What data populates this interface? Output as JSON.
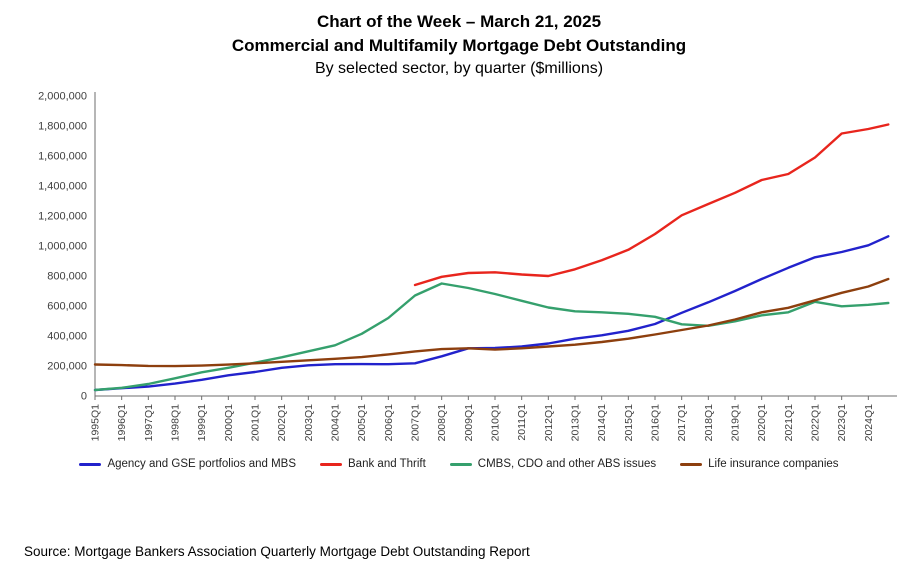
{
  "header": {
    "line1": "Chart of the Week – March 21, 2025",
    "line2": "Commercial and Multifamily Mortgage Debt Outstanding",
    "line3": "By selected sector, by quarter ($millions)"
  },
  "source": "Source: Mortgage Bankers Association Quarterly Mortgage Debt Outstanding Report",
  "chart_data": {
    "type": "line",
    "title": "Chart of the Week – March 21, 2025",
    "subtitle": "Commercial and Multifamily Mortgage Debt Outstanding",
    "caption": "By selected sector, by quarter ($millions)",
    "grid": false,
    "legend_position": "bottom",
    "x_range": [
      1995,
      2025
    ],
    "ylim": [
      0,
      2000000
    ],
    "y_tick_values": [
      0,
      200000,
      400000,
      600000,
      800000,
      1000000,
      1200000,
      1400000,
      1600000,
      1800000,
      2000000
    ],
    "y_tick_labels": [
      "0",
      "200,000",
      "400,000",
      "600,000",
      "800,000",
      "1,000,000",
      "1,200,000",
      "1,400,000",
      "1,600,000",
      "1,800,000",
      "2,000,000"
    ],
    "x_tick_labels": [
      "1995Q1",
      "1996Q1",
      "1997Q1",
      "1998Q1",
      "1999Q1",
      "2000Q1",
      "2001Q1",
      "2002Q1",
      "2003Q1",
      "2004Q1",
      "2005Q1",
      "2006Q1",
      "2007Q1",
      "2008Q1",
      "2009Q1",
      "2010Q1",
      "2011Q1",
      "2012Q1",
      "2013Q1",
      "2014Q1",
      "2015Q1",
      "2016Q1",
      "2017Q1",
      "2018Q1",
      "2019Q1",
      "2020Q1",
      "2021Q1",
      "2022Q1",
      "2023Q1",
      "2024Q1"
    ],
    "x": [
      1995,
      1996,
      1997,
      1998,
      1999,
      2000,
      2001,
      2002,
      2003,
      2004,
      2005,
      2006,
      2007,
      2008,
      2009,
      2010,
      2011,
      2012,
      2013,
      2014,
      2015,
      2016,
      2017,
      2018,
      2019,
      2020,
      2021,
      2022,
      2023,
      2024,
      2024.75
    ],
    "series": [
      {
        "name": "Agency and GSE portfolios and MBS",
        "color": "#2222cc",
        "values": [
          40000,
          52000,
          63000,
          83000,
          108000,
          138000,
          160000,
          188000,
          205000,
          212000,
          213000,
          212000,
          218000,
          265000,
          318000,
          320000,
          330000,
          350000,
          382000,
          405000,
          435000,
          480000,
          555000,
          625000,
          700000,
          780000,
          855000,
          925000,
          960000,
          1005000,
          1065000
        ]
      },
      {
        "name": "Bank and Thrift",
        "color": "#e8251d",
        "values": [
          null,
          null,
          null,
          null,
          null,
          null,
          null,
          null,
          null,
          null,
          null,
          null,
          740000,
          795000,
          820000,
          825000,
          810000,
          800000,
          845000,
          905000,
          975000,
          1080000,
          1205000,
          1280000,
          1355000,
          1440000,
          1480000,
          1590000,
          1750000,
          1780000,
          1810000
        ]
      },
      {
        "name": "CMBS, CDO and other ABS issues",
        "color": "#35a06d",
        "values": [
          40000,
          55000,
          80000,
          118000,
          158000,
          188000,
          222000,
          258000,
          298000,
          338000,
          415000,
          520000,
          670000,
          750000,
          720000,
          680000,
          635000,
          590000,
          565000,
          558000,
          548000,
          528000,
          478000,
          468000,
          498000,
          538000,
          558000,
          628000,
          598000,
          608000,
          620000
        ]
      },
      {
        "name": "Life insurance companies",
        "color": "#8d3f0e",
        "values": [
          210000,
          206000,
          201000,
          199000,
          203000,
          209000,
          218000,
          228000,
          238000,
          248000,
          259000,
          277000,
          297000,
          313000,
          318000,
          309000,
          318000,
          330000,
          342000,
          360000,
          382000,
          410000,
          440000,
          470000,
          510000,
          558000,
          588000,
          638000,
          688000,
          730000,
          780000
        ]
      }
    ]
  }
}
